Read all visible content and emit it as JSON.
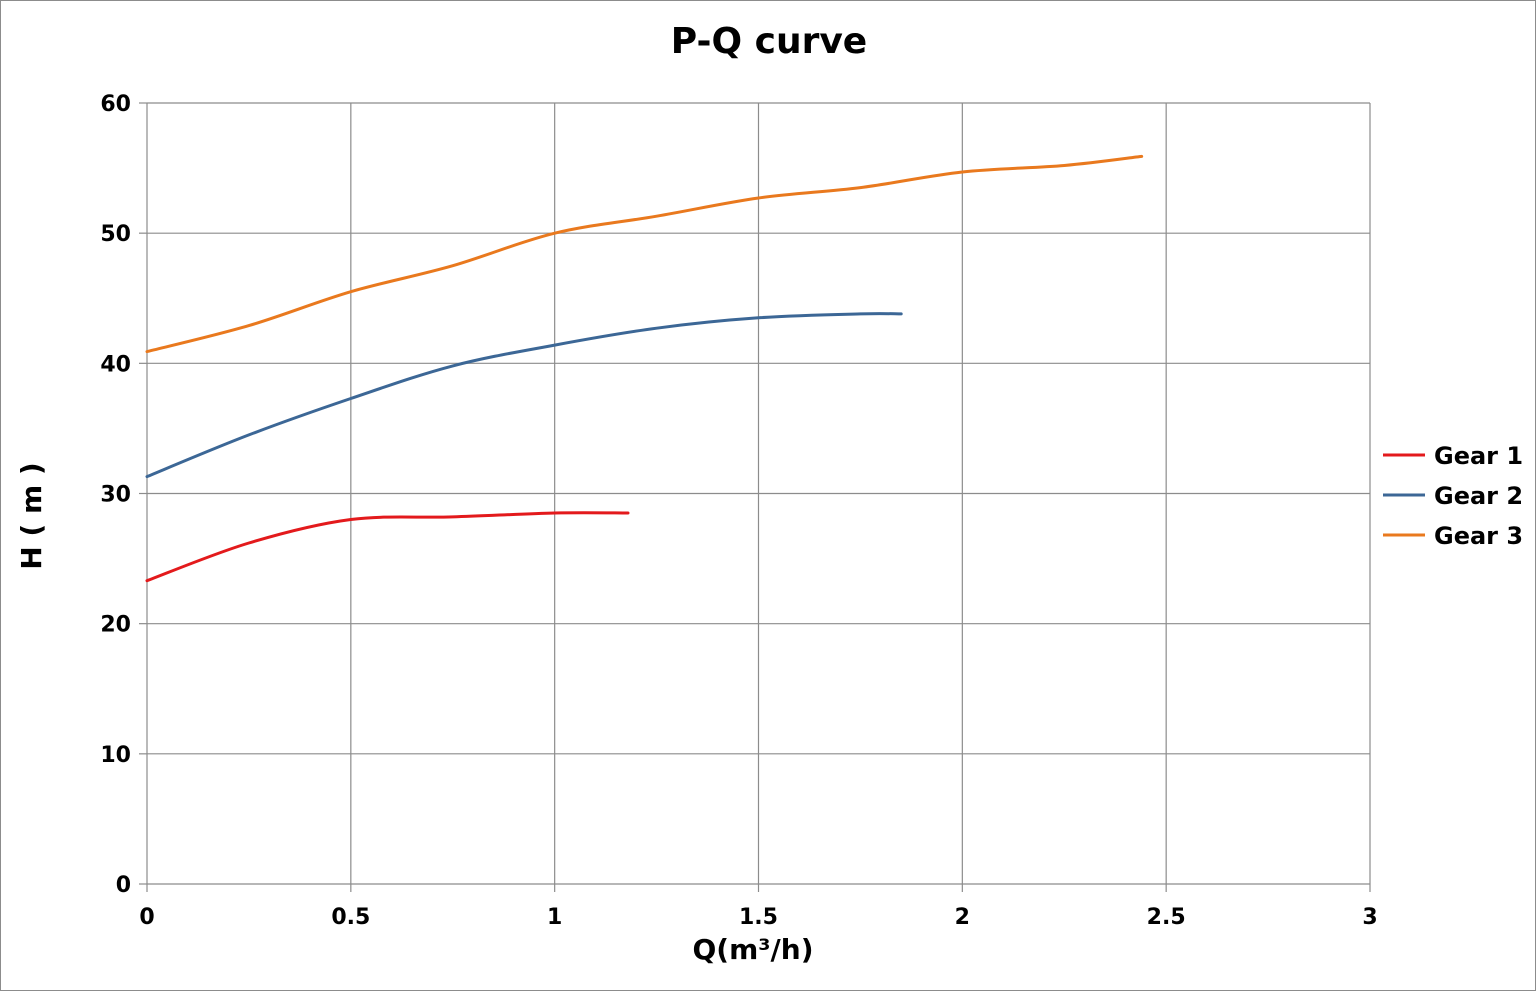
{
  "chart_data": {
    "type": "line",
    "title": "P-Q  curve",
    "xlabel": "Q(m³/h)",
    "ylabel": "H ( m )",
    "xlim": [
      0,
      3
    ],
    "ylim": [
      0,
      60
    ],
    "xticks": [
      "0",
      "0.5",
      "1",
      "1.5",
      "2",
      "2.5",
      "3"
    ],
    "yticks": [
      "0",
      "10",
      "20",
      "30",
      "40",
      "50",
      "60"
    ],
    "grid": true,
    "legend_position": "right",
    "series": [
      {
        "name": "Gear 1",
        "color": "#e31a1c",
        "points": [
          [
            0,
            23.3
          ],
          [
            0.25,
            26.2
          ],
          [
            0.5,
            28.0
          ],
          [
            0.75,
            28.2
          ],
          [
            1.0,
            28.5
          ],
          [
            1.18,
            28.5
          ]
        ]
      },
      {
        "name": "Gear 2",
        "color": "#3c6796",
        "points": [
          [
            0,
            31.3
          ],
          [
            0.25,
            34.5
          ],
          [
            0.5,
            37.3
          ],
          [
            0.75,
            39.8
          ],
          [
            1.0,
            41.4
          ],
          [
            1.25,
            42.7
          ],
          [
            1.5,
            43.5
          ],
          [
            1.75,
            43.8
          ],
          [
            1.85,
            43.8
          ]
        ]
      },
      {
        "name": "Gear 3",
        "color": "#e9791e",
        "points": [
          [
            0,
            40.9
          ],
          [
            0.25,
            42.9
          ],
          [
            0.5,
            45.5
          ],
          [
            0.75,
            47.5
          ],
          [
            1.0,
            50.0
          ],
          [
            1.25,
            51.3
          ],
          [
            1.5,
            52.7
          ],
          [
            1.75,
            53.5
          ],
          [
            2.0,
            54.7
          ],
          [
            2.25,
            55.2
          ],
          [
            2.44,
            55.9
          ]
        ]
      }
    ]
  }
}
